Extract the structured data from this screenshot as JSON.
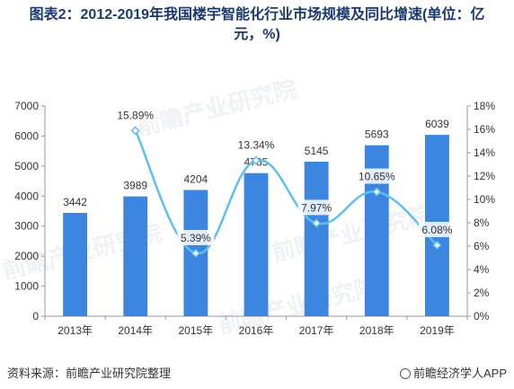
{
  "header": {
    "title_line1": "图表2：2012-2019年我国楼宇智能化行业市场规模及同比增速(单位：亿",
    "title_line2": "元，%)"
  },
  "footer": {
    "source": "资料来源：前瞻产业研究院整理",
    "brand": "前瞻经济学人APP"
  },
  "watermark": {
    "text": "前瞻产业研究院"
  },
  "colors": {
    "bar": "#3d86e0",
    "line": "#5fc0f0",
    "axis": "#999999",
    "title": "#1b3a6b"
  },
  "chart_data": {
    "type": "bar",
    "categories": [
      "2013年",
      "2014年",
      "2015年",
      "2016年",
      "2017年",
      "2018年",
      "2019年"
    ],
    "series": [
      {
        "type": "bar",
        "axis": "left",
        "values": [
          3442,
          3989,
          4204,
          4765,
          5145,
          5693,
          6039
        ],
        "labels": [
          "3442",
          "3989",
          "4204",
          "4765",
          "5145",
          "5693",
          "6039"
        ]
      },
      {
        "type": "line",
        "axis": "right",
        "smooth": true,
        "values": [
          null,
          15.89,
          5.39,
          13.34,
          7.97,
          10.65,
          6.08
        ],
        "labels": [
          "",
          "15.89%",
          "5.39%",
          "13.34%",
          "7.97%",
          "10.65%",
          "6.08%"
        ]
      }
    ],
    "y_left": {
      "min": 0,
      "max": 7000,
      "ticks": [
        "0",
        "1000",
        "2000",
        "3000",
        "4000",
        "5000",
        "6000",
        "7000"
      ]
    },
    "y_right": {
      "min": 0,
      "max": 18,
      "ticks": [
        "0%",
        "2%",
        "4%",
        "6%",
        "8%",
        "10%",
        "12%",
        "14%",
        "16%",
        "18%"
      ]
    },
    "grid": false,
    "legend": "none"
  }
}
